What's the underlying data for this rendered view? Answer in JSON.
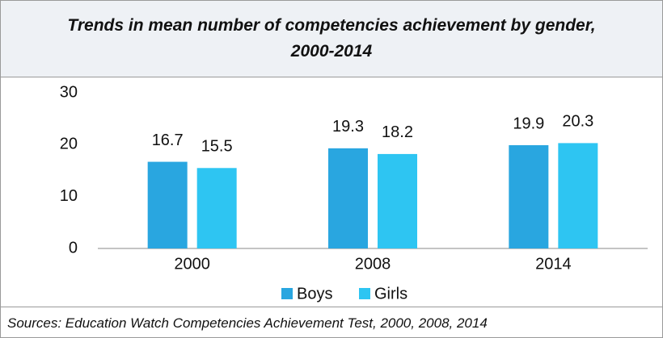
{
  "chart_data": {
    "type": "bar",
    "title": "Trends in mean number of competencies achievement by gender,\n2000-2014",
    "categories": [
      "2000",
      "2008",
      "2014"
    ],
    "series": [
      {
        "name": "Boys",
        "color": "#29a6e0",
        "values": [
          16.7,
          19.3,
          19.9
        ]
      },
      {
        "name": "Girls",
        "color": "#2ec5f2",
        "values": [
          15.5,
          18.2,
          20.3
        ]
      }
    ],
    "ylim": [
      0,
      30
    ],
    "yticks": [
      0,
      10,
      20,
      30
    ],
    "grid": false,
    "legend": "bottom",
    "source": "Sources: Education Watch Competencies Achievement Test, 2000, 2008, 2014"
  }
}
